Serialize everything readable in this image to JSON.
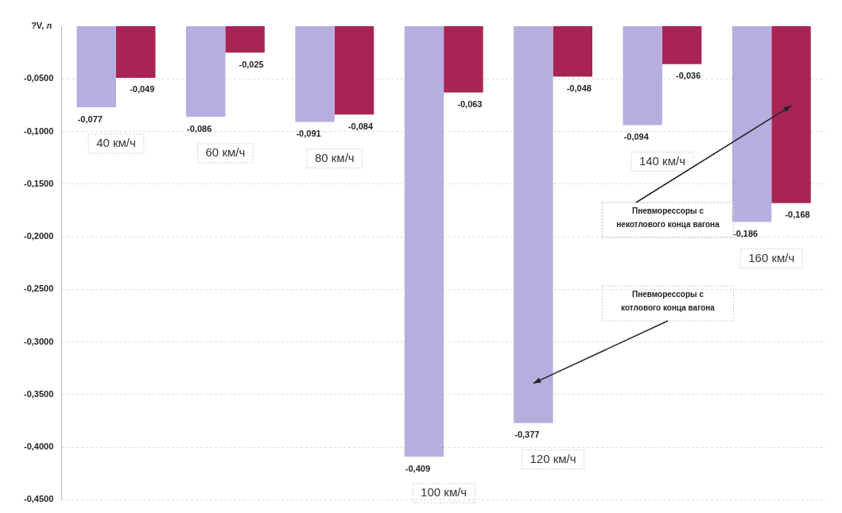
{
  "chart_data": {
    "type": "bar",
    "ylabel": "?V, л",
    "categories": [
      "40 км/ч",
      "60 км/ч",
      "80 км/ч",
      "100 км/ч",
      "120 км/ч",
      "140 км/ч",
      "160 км/ч"
    ],
    "series": [
      {
        "name": "Пневморессоры с котлового конца вагона",
        "color": "#b8addf",
        "values": [
          -0.077,
          -0.086,
          -0.091,
          -0.409,
          -0.377,
          -0.094,
          -0.186
        ],
        "value_labels": [
          "-0,077",
          "-0,086",
          "-0,091",
          "-0,409",
          "-0,377",
          "-0,094",
          "-0,186"
        ]
      },
      {
        "name": "Пневморессоры с некотлового конца вагона",
        "color": "#a82454",
        "values": [
          -0.049,
          -0.025,
          -0.084,
          -0.063,
          -0.048,
          -0.036,
          -0.168
        ],
        "value_labels": [
          "-0,049",
          "-0,025",
          "-0,084",
          "-0,063",
          "-0,048",
          "-0,036",
          "-0,168"
        ]
      }
    ],
    "ylim": [
      -0.45,
      0
    ],
    "yticks": [
      {
        "value": -0.05,
        "label": "-0,0500"
      },
      {
        "value": -0.1,
        "label": "-0,1000"
      },
      {
        "value": -0.15,
        "label": "-0,1500"
      },
      {
        "value": -0.2,
        "label": "-0,2000"
      },
      {
        "value": -0.25,
        "label": "-0,2500"
      },
      {
        "value": -0.3,
        "label": "-0,3000"
      },
      {
        "value": -0.35,
        "label": "-0,3500"
      },
      {
        "value": -0.4,
        "label": "-0,4000"
      },
      {
        "value": -0.45,
        "label": "-0,4500"
      }
    ],
    "grid": "y",
    "legend": false
  }
}
